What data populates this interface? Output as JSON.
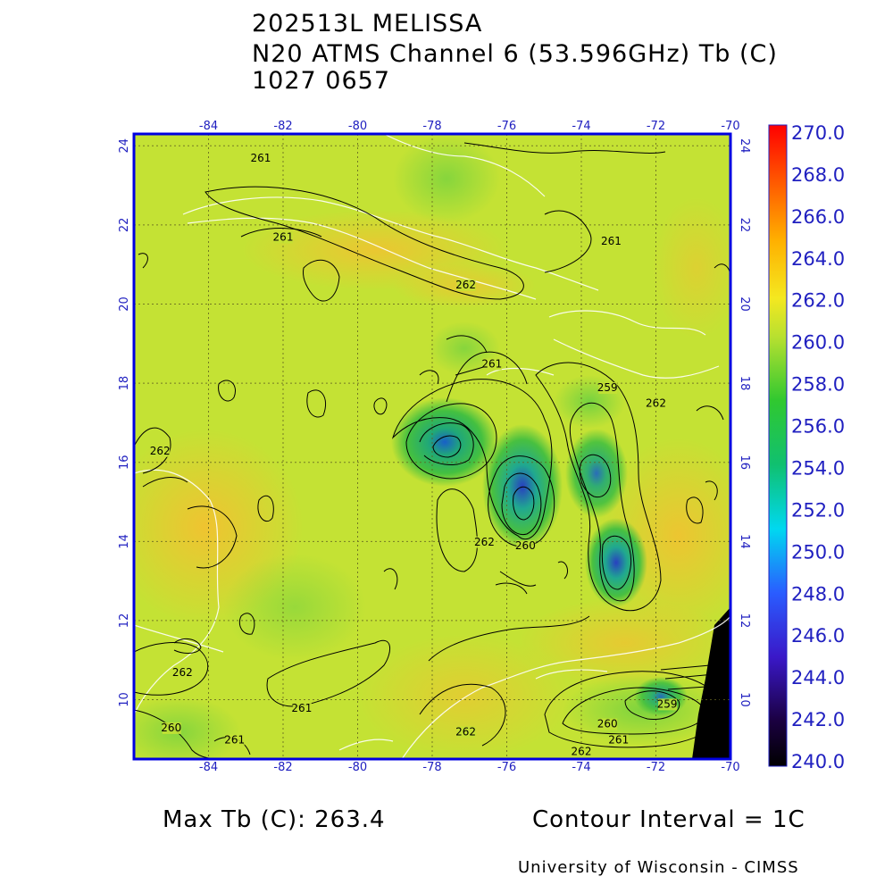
{
  "title": {
    "storm": "202513L MELISSA",
    "instrument": "N20 ATMS Channel 6 (53.596GHz) Tb (C)",
    "datetime": "1027 0657"
  },
  "map": {
    "lon_ticks": [
      "-84",
      "-82",
      "-80",
      "-78",
      "-76",
      "-74",
      "-72",
      "-70"
    ],
    "lat_ticks": [
      "24",
      "22",
      "20",
      "18",
      "16",
      "14",
      "12",
      "10"
    ],
    "lon_range": [
      -86,
      -70
    ],
    "lat_range": [
      8.5,
      24.3
    ],
    "background_color": "#c4e234",
    "contour_labels": [
      {
        "text": "261",
        "lon": -82.6,
        "lat": 23.6
      },
      {
        "text": "261",
        "lon": -82.0,
        "lat": 21.6
      },
      {
        "text": "262",
        "lon": -77.1,
        "lat": 20.4
      },
      {
        "text": "261",
        "lon": -73.2,
        "lat": 21.5
      },
      {
        "text": "261",
        "lon": -76.4,
        "lat": 18.4
      },
      {
        "text": "262",
        "lon": -85.3,
        "lat": 16.2
      },
      {
        "text": "262",
        "lon": -72.0,
        "lat": 17.4
      },
      {
        "text": "259",
        "lon": -73.3,
        "lat": 17.8
      },
      {
        "text": "262",
        "lon": -76.6,
        "lat": 13.9
      },
      {
        "text": "260",
        "lon": -75.5,
        "lat": 13.8
      },
      {
        "text": "262",
        "lon": -84.7,
        "lat": 10.6
      },
      {
        "text": "261",
        "lon": -81.5,
        "lat": 9.7
      },
      {
        "text": "260",
        "lon": -85.0,
        "lat": 9.2
      },
      {
        "text": "262",
        "lon": -77.1,
        "lat": 9.1
      },
      {
        "text": "261",
        "lon": -83.3,
        "lat": 8.9
      },
      {
        "text": "260",
        "lon": -73.3,
        "lat": 9.3
      },
      {
        "text": "261",
        "lon": -73.0,
        "lat": 8.9
      },
      {
        "text": "262",
        "lon": -74.0,
        "lat": 8.6
      },
      {
        "text": "259",
        "lon": -71.7,
        "lat": 9.8
      }
    ]
  },
  "colorbar": {
    "labels": [
      "270.0",
      "268.0",
      "266.0",
      "264.0",
      "262.0",
      "260.0",
      "258.0",
      "256.0",
      "254.0",
      "252.0",
      "250.0",
      "248.0",
      "246.0",
      "244.0",
      "242.0",
      "240.0"
    ],
    "range": [
      240,
      270
    ]
  },
  "footer": {
    "max_tb": "Max Tb (C): 263.4",
    "contour_interval": "Contour Interval = 1C",
    "credit": "University of Wisconsin - CIMSS"
  }
}
